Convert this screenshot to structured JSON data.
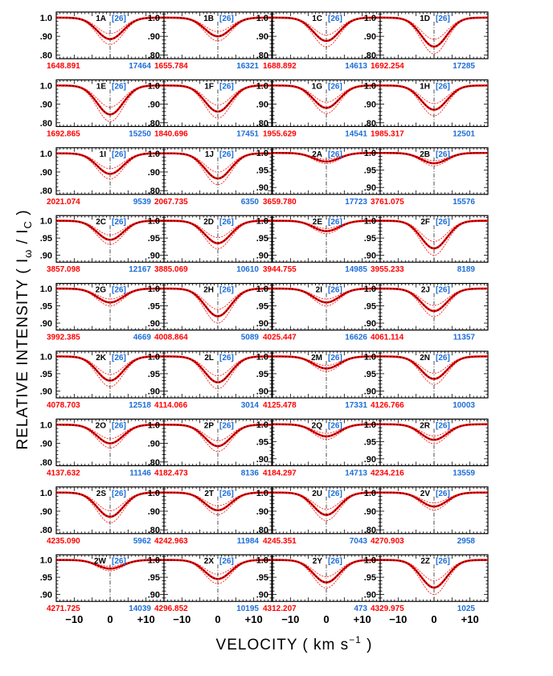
{
  "chart_data": {
    "type": "line",
    "xlabel": "VELOCITY  ( km s",
    "xlabel_sup": "−1",
    "xlabel_end": " )",
    "ylabel": "RELATIVE INTENSITY  ( I",
    "ylabel_sub1": "ω",
    "ylabel_mid": " / I",
    "ylabel_sub2": "C",
    "ylabel_end": " )",
    "x_tick_labels": [
      "−10",
      "0",
      "+10"
    ],
    "xlim": [
      -15,
      15
    ],
    "series_colors": {
      "observed": "#000000",
      "model": "#ff0000",
      "error_band": "#ff0000"
    },
    "panels": [
      {
        "label": "1A",
        "bracket": "26",
        "wavelength": "1648.891",
        "number": "17464",
        "ylim": [
          0.78,
          1.03
        ],
        "yticks": [
          "1.0",
          ".90",
          ".80"
        ],
        "depth": 0.885
      },
      {
        "label": "1B",
        "bracket": "26",
        "wavelength": "1655.784",
        "number": "16321",
        "ylim": [
          0.78,
          1.03
        ],
        "yticks": [
          "1.0",
          ".90",
          ".80"
        ],
        "depth": 0.9
      },
      {
        "label": "1C",
        "bracket": "26",
        "wavelength": "1688.892",
        "number": "14613",
        "ylim": [
          0.78,
          1.03
        ],
        "yticks": [
          "1.0",
          ".90",
          ".80"
        ],
        "depth": 0.875
      },
      {
        "label": "1D",
        "bracket": "26",
        "wavelength": "1692.254",
        "number": "17285",
        "ylim": [
          0.78,
          1.03
        ],
        "yticks": [
          "1.0",
          ".90",
          ".80"
        ],
        "depth": 0.845
      },
      {
        "label": "1E",
        "bracket": "26",
        "wavelength": "1692.865",
        "number": "15250",
        "ylim": [
          0.78,
          1.03
        ],
        "yticks": [
          "1.0",
          ".90",
          ".80"
        ],
        "depth": 0.845
      },
      {
        "label": "1F",
        "bracket": "26",
        "wavelength": "1840.696",
        "number": "17451",
        "ylim": [
          0.78,
          1.03
        ],
        "yticks": [
          "1.0",
          ".90",
          ".80"
        ],
        "depth": 0.86
      },
      {
        "label": "1G",
        "bracket": "26",
        "wavelength": "1955.629",
        "number": "14541",
        "ylim": [
          0.78,
          1.03
        ],
        "yticks": [
          "1.0",
          ".90",
          ".80"
        ],
        "depth": 0.88
      },
      {
        "label": "1H",
        "bracket": "26",
        "wavelength": "1985.317",
        "number": "12501",
        "ylim": [
          0.78,
          1.03
        ],
        "yticks": [
          "1.0",
          ".90",
          ".80"
        ],
        "depth": 0.87
      },
      {
        "label": "1I",
        "bracket": "26",
        "wavelength": "2021.074",
        "number": "9539",
        "ylim": [
          0.78,
          1.03
        ],
        "yticks": [
          "1.0",
          ".90",
          ".80"
        ],
        "depth": 0.89
      },
      {
        "label": "1J",
        "bracket": "26",
        "wavelength": "2067.735",
        "number": "6350",
        "ylim": [
          0.78,
          1.03
        ],
        "yticks": [
          "1.0",
          ".90",
          ".80"
        ],
        "depth": 0.865
      },
      {
        "label": "2A",
        "bracket": "26",
        "wavelength": "3659.780",
        "number": "17723",
        "ylim": [
          0.88,
          1.015
        ],
        "yticks": [
          "1.0",
          ".95",
          ".90"
        ],
        "depth": 0.975
      },
      {
        "label": "2B",
        "bracket": "26",
        "wavelength": "3761.075",
        "number": "15576",
        "ylim": [
          0.88,
          1.015
        ],
        "yticks": [
          "1.0",
          ".95",
          ".90"
        ],
        "depth": 0.97
      },
      {
        "label": "2C",
        "bracket": "26",
        "wavelength": "3857.098",
        "number": "12167",
        "ylim": [
          0.88,
          1.015
        ],
        "yticks": [
          "1.0",
          ".95",
          ".90"
        ],
        "depth": 0.945
      },
      {
        "label": "2D",
        "bracket": "26",
        "wavelength": "3885.069",
        "number": "10610",
        "ylim": [
          0.88,
          1.015
        ],
        "yticks": [
          "1.0",
          ".95",
          ".90"
        ],
        "depth": 0.935
      },
      {
        "label": "2E",
        "bracket": "26",
        "wavelength": "3944.755",
        "number": "14985",
        "ylim": [
          0.88,
          1.015
        ],
        "yticks": [
          "1.0",
          ".95",
          ".90"
        ],
        "depth": 0.97
      },
      {
        "label": "2F",
        "bracket": "26",
        "wavelength": "3955.233",
        "number": "8189",
        "ylim": [
          0.88,
          1.015
        ],
        "yticks": [
          "1.0",
          ".95",
          ".90"
        ],
        "depth": 0.92
      },
      {
        "label": "2G",
        "bracket": "26",
        "wavelength": "3992.385",
        "number": "4669",
        "ylim": [
          0.88,
          1.015
        ],
        "yticks": [
          "1.0",
          ".95",
          ".90"
        ],
        "depth": 0.96
      },
      {
        "label": "2H",
        "bracket": "26",
        "wavelength": "4008.864",
        "number": "5089",
        "ylim": [
          0.88,
          1.015
        ],
        "yticks": [
          "1.0",
          ".95",
          ".90"
        ],
        "depth": 0.92
      },
      {
        "label": "2I",
        "bracket": "26",
        "wavelength": "4025.447",
        "number": "16626",
        "ylim": [
          0.88,
          1.015
        ],
        "yticks": [
          "1.0",
          ".95",
          ".90"
        ],
        "depth": 0.96
      },
      {
        "label": "2J",
        "bracket": "26",
        "wavelength": "4061.114",
        "number": "11357",
        "ylim": [
          0.88,
          1.015
        ],
        "yticks": [
          "1.0",
          ".95",
          ".90"
        ],
        "depth": 0.935
      },
      {
        "label": "2K",
        "bracket": "26",
        "wavelength": "4078.703",
        "number": "12518",
        "ylim": [
          0.88,
          1.015
        ],
        "yticks": [
          "1.0",
          ".95",
          ".90"
        ],
        "depth": 0.93
      },
      {
        "label": "2L",
        "bracket": "26",
        "wavelength": "4114.066",
        "number": "3014",
        "ylim": [
          0.88,
          1.015
        ],
        "yticks": [
          "1.0",
          ".95",
          ".90"
        ],
        "depth": 0.925
      },
      {
        "label": "2M",
        "bracket": "26",
        "wavelength": "4125.478",
        "number": "17331",
        "ylim": [
          0.88,
          1.015
        ],
        "yticks": [
          "1.0",
          ".95",
          ".90"
        ],
        "depth": 0.965
      },
      {
        "label": "2N",
        "bracket": "26",
        "wavelength": "4126.766",
        "number": "10003",
        "ylim": [
          0.88,
          1.015
        ],
        "yticks": [
          "1.0",
          ".95",
          ".90"
        ],
        "depth": 0.935
      },
      {
        "label": "2O",
        "bracket": "26",
        "wavelength": "4137.632",
        "number": "11146",
        "ylim": [
          0.78,
          1.03
        ],
        "yticks": [
          "1.0",
          ".90",
          ".80"
        ],
        "depth": 0.9
      },
      {
        "label": "2P",
        "bracket": "26",
        "wavelength": "4182.473",
        "number": "8136",
        "ylim": [
          0.78,
          1.03
        ],
        "yticks": [
          "1.0",
          ".90",
          ".80"
        ],
        "depth": 0.885
      },
      {
        "label": "2Q",
        "bracket": "26",
        "wavelength": "4184.297",
        "number": "14713",
        "ylim": [
          0.88,
          1.015
        ],
        "yticks": [
          "1.0",
          ".95",
          ".90"
        ],
        "depth": 0.965
      },
      {
        "label": "2R",
        "bracket": "26",
        "wavelength": "4234.216",
        "number": "13559",
        "ylim": [
          0.88,
          1.015
        ],
        "yticks": [
          "1.0",
          ".95",
          ".90"
        ],
        "depth": 0.955
      },
      {
        "label": "2S",
        "bracket": "26",
        "wavelength": "4235.090",
        "number": "5962",
        "ylim": [
          0.78,
          1.03
        ],
        "yticks": [
          "1.0",
          ".90",
          ".80"
        ],
        "depth": 0.87
      },
      {
        "label": "2T",
        "bracket": "26",
        "wavelength": "4242.963",
        "number": "11984",
        "ylim": [
          0.78,
          1.03
        ],
        "yticks": [
          "1.0",
          ".90",
          ".80"
        ],
        "depth": 0.905
      },
      {
        "label": "2U",
        "bracket": "26",
        "wavelength": "4245.351",
        "number": "7043",
        "ylim": [
          0.78,
          1.03
        ],
        "yticks": [
          "1.0",
          ".90",
          ".80"
        ],
        "depth": 0.88
      },
      {
        "label": "2V",
        "bracket": "26",
        "wavelength": "4270.903",
        "number": "2958",
        "ylim": [
          0.78,
          1.03
        ],
        "yticks": [
          "1.0",
          ".90",
          ".80"
        ],
        "depth": 0.925
      },
      {
        "label": "2W",
        "bracket": "26",
        "wavelength": "4271.725",
        "number": "14039",
        "ylim": [
          0.88,
          1.015
        ],
        "yticks": [
          "1.0",
          ".95",
          ".90"
        ],
        "depth": 0.975
      },
      {
        "label": "2X",
        "bracket": "26",
        "wavelength": "4296.852",
        "number": "10195",
        "ylim": [
          0.88,
          1.015
        ],
        "yticks": [
          "1.0",
          ".95",
          ".90"
        ],
        "depth": 0.945
      },
      {
        "label": "2Y",
        "bracket": "26",
        "wavelength": "4312.207",
        "number": "473",
        "ylim": [
          0.88,
          1.015
        ],
        "yticks": [
          "1.0",
          ".95",
          ".90"
        ],
        "depth": 0.935
      },
      {
        "label": "2Z",
        "bracket": "26",
        "wavelength": "4329.975",
        "number": "1025",
        "ylim": [
          0.88,
          1.015
        ],
        "yticks": [
          "1.0",
          ".95",
          ".90"
        ],
        "depth": 0.92
      }
    ]
  }
}
